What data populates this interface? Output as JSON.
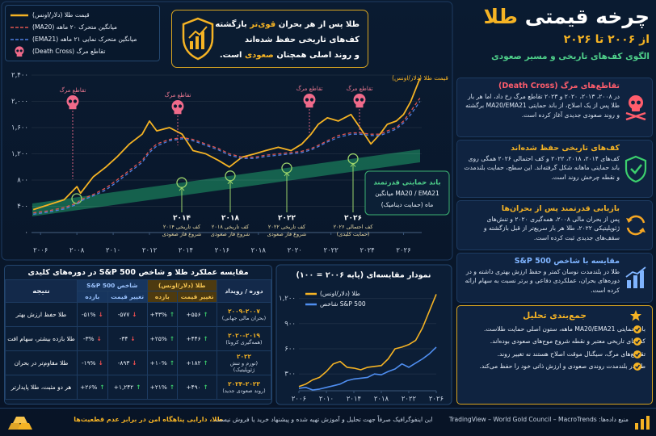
{
  "header": {
    "title": [
      "چرخه قیمتی",
      "طلا"
    ],
    "subtitle": "از ۲۰۰۶ تا ۲۰۲۶",
    "tagline": "الگوی کف‌های تاریخی و مسیر صعودی"
  },
  "callout": [
    [
      "طلا پس از هر بحران",
      "قوی‌تر",
      "بازگشته"
    ],
    [
      "کف‌های تاریخی حفظ شده‌اند"
    ],
    [
      "و روند اصلی همچنان",
      "صعودی",
      "است."
    ]
  ],
  "chart_data": [
    {
      "type": "line",
      "y_label": "قیمت طلا (دلار/اونس)",
      "grid": true,
      "xlim": [
        2005.5,
        2027
      ],
      "ylim": [
        0,
        2450
      ],
      "xticks": [
        {
          "value": 2006,
          "label": "۲۰۰۶"
        },
        {
          "value": 2008,
          "label": "۲۰۰۸"
        },
        {
          "value": 2010,
          "label": "۲۰۱۰"
        },
        {
          "value": 2012,
          "label": "۲۰۱۲"
        },
        {
          "value": 2014,
          "label": "۲۰۱۴"
        },
        {
          "value": 2016,
          "label": "۲۰۱۶"
        },
        {
          "value": 2018,
          "label": "۲۰۱۸"
        },
        {
          "value": 2020,
          "label": "۲۰۲۰"
        },
        {
          "value": 2022,
          "label": "۲۰۲۲"
        },
        {
          "value": 2024,
          "label": "۲۰۲۴"
        },
        {
          "value": 2026,
          "label": "۲۰۲۶"
        }
      ],
      "yticks": [
        {
          "value": 0,
          "label": "۰"
        },
        {
          "value": 400,
          "label": "۴۰۰"
        },
        {
          "value": 800,
          "label": "۸۰۰"
        },
        {
          "value": 1200,
          "label": "۱,۲۰۰"
        },
        {
          "value": 1600,
          "label": "۱,۶۰۰"
        },
        {
          "value": 2000,
          "label": "۲,۰۰۰"
        },
        {
          "value": 2400,
          "label": "۲,۴۰۰"
        }
      ],
      "x": [
        2005.6,
        2006.4,
        2007.3,
        2008.0,
        2008.2,
        2008.9,
        2009.6,
        2010.2,
        2010.9,
        2011.6,
        2012.0,
        2012.4,
        2013.1,
        2013.8,
        2014.4,
        2015.1,
        2015.8,
        2016.4,
        2017.1,
        2017.8,
        2018.4,
        2019.1,
        2019.8,
        2020.4,
        2020.9,
        2021.3,
        2021.8,
        2022.4,
        2023.1,
        2023.6,
        2024.2,
        2024.7,
        2025.1,
        2025.6,
        2026.0,
        2026.4,
        2026.9
      ],
      "series": [
        {
          "name": "قیمت طلا (دلار/اونس)",
          "color": "#f5b324",
          "style": "solid",
          "values": [
            350,
            420,
            500,
            700,
            600,
            850,
            1000,
            1150,
            1350,
            1500,
            1700,
            1550,
            1600,
            1500,
            1250,
            1200,
            1100,
            1000,
            1150,
            1200,
            1250,
            1300,
            1250,
            1350,
            1500,
            1650,
            1750,
            1700,
            1800,
            1600,
            1350,
            1500,
            1650,
            1700,
            1800,
            2000,
            2350
          ]
        },
        {
          "name": "میانگین متحرک ۲۰ ماهه (MA20)",
          "color": "#e0554f",
          "style": "dashed",
          "values": [
            300,
            330,
            380,
            450,
            500,
            580,
            680,
            800,
            950,
            1100,
            1250,
            1350,
            1420,
            1450,
            1420,
            1350,
            1280,
            1200,
            1150,
            1150,
            1180,
            1200,
            1220,
            1240,
            1280,
            1330,
            1400,
            1480,
            1520,
            1520,
            1500,
            1500,
            1550,
            1600,
            1700,
            1850,
            2050
          ]
        },
        {
          "name": "میانگین متحرک نمایی ۲۱ ماهه (EMA21)",
          "color": "#4f7fe0",
          "style": "dashed",
          "values": [
            280,
            310,
            360,
            430,
            480,
            560,
            650,
            770,
            920,
            1070,
            1220,
            1320,
            1400,
            1430,
            1400,
            1330,
            1260,
            1180,
            1130,
            1130,
            1160,
            1180,
            1200,
            1220,
            1260,
            1310,
            1380,
            1450,
            1500,
            1500,
            1480,
            1480,
            1520,
            1580,
            1670,
            1800,
            2000
          ]
        }
      ],
      "death_cross_legend": "تقاطع مرگ (Death Cross)",
      "death_crosses": [
        "تقاطع مرگ",
        "تقاطع مرگ",
        "تقاطع مرگ",
        "تقاطع مرگ"
      ],
      "lows": [
        {
          "year": "۲۰۱۴",
          "lines": [
            "کف تاریخی ۲۰۱۴",
            "شروع فاز صعودی"
          ]
        },
        {
          "year": "۲۰۱۸",
          "lines": [
            "کف تاریخی ۲۰۱۸",
            "شروع فاز صعودی"
          ]
        },
        {
          "year": "۲۰۲۲",
          "lines": [
            "کف تاریخی ۲۰۲۲",
            "شروع فاز صعودی"
          ]
        },
        {
          "year": "۲۰۲۶",
          "lines": [
            "کف احتمالی ۲۰۲۶",
            "(حمایت کلیدی)"
          ]
        }
      ],
      "support_band": [
        "باند حمایتی قدرتمند",
        "میانگین MA20 / EMA21",
        "ماه (حمایت دینامیک)"
      ]
    },
    {
      "type": "line",
      "title": "نمودار مقایسه‌ای (پایه ۲۰۰۶ = ۱۰۰)",
      "grid": true,
      "xlim": [
        2006,
        2026
      ],
      "ylim": [
        100,
        1350
      ],
      "xticks": [
        {
          "value": 2006,
          "label": "۲۰۰۶"
        },
        {
          "value": 2010,
          "label": "۲۰۱۰"
        },
        {
          "value": 2014,
          "label": "۲۰۱۴"
        },
        {
          "value": 2018,
          "label": "۲۰۱۸"
        },
        {
          "value": 2022,
          "label": "۲۰۲۲"
        },
        {
          "value": 2026,
          "label": "۲۰۲۶"
        }
      ],
      "yticks": [
        {
          "value": 300,
          "label": "۳۰۰"
        },
        {
          "value": 600,
          "label": "۶۰۰"
        },
        {
          "value": 900,
          "label": "۹۰۰"
        },
        {
          "value": 1200,
          "label": "۱,۲۰۰"
        }
      ],
      "x": [
        2006,
        2007,
        2008,
        2009,
        2010,
        2011,
        2012,
        2013,
        2014,
        2015,
        2016,
        2017,
        2018,
        2019,
        2020,
        2021,
        2022,
        2023,
        2024,
        2025,
        2026
      ],
      "series": [
        {
          "name": "طلا (دلار/اونس)",
          "color": "#f5b324",
          "style": "solid",
          "values": [
            150,
            180,
            230,
            260,
            330,
            420,
            450,
            380,
            370,
            350,
            380,
            390,
            400,
            480,
            600,
            620,
            650,
            700,
            850,
            1050,
            1250
          ]
        },
        {
          "name": "شاخص S&P 500",
          "color": "#4f8ef0",
          "style": "solid",
          "values": [
            130,
            140,
            110,
            120,
            140,
            160,
            180,
            220,
            240,
            250,
            260,
            300,
            290,
            330,
            360,
            420,
            380,
            430,
            480,
            540,
            620
          ]
        }
      ]
    }
  ],
  "table": {
    "title": "مقایسه عملکرد طلا و شاخص S&P 500 در دوره‌های کلیدی",
    "headers": {
      "period": "دوره / رویداد",
      "gold": "طلا (دلار/اونس)",
      "sp": "شاخص S&P 500",
      "change": "تغییر قیمت",
      "return": "بازده",
      "result": "نتیجه"
    },
    "rows": [
      {
        "period": "۲۰۰۷–۲۰۰۹",
        "event": "(بحران مالی جهانی)",
        "gold_change": "+۵۵۶",
        "gold_return": "+۴۳%",
        "sp_change": "-۵۷۷",
        "sp_return": "-۵۱%",
        "result": "طلا حفظ ارزش بهتر"
      },
      {
        "period": "۲۰۱۹–۲۰۲۰",
        "event": "(همه‌گیری کرونا)",
        "gold_change": "+۴۴۶",
        "gold_return": "+۲۵%",
        "sp_change": "-۳۴",
        "sp_return": "-۳%",
        "result": "طلا بازده بیشتر، سهام افت"
      },
      {
        "period": "۲۰۲۲",
        "event": "(تورم و تنش ژئوپلیتیک)",
        "gold_change": "+۱۸۲",
        "gold_return": "+۱۰%",
        "sp_change": "-۸۹۳",
        "sp_return": "-۱۹%",
        "result": "طلا مقاوم‌تر در بحران"
      },
      {
        "period": "۲۰۲۳–۲۰۲۴",
        "event": "(روند صعودی جدید)",
        "gold_change": "+۴۹۰",
        "gold_return": "+۲۱%",
        "sp_change": "+۱,۲۴۲",
        "sp_return": "+۲۶%",
        "result": "هر دو مثبت، طلا پایدارتر"
      }
    ]
  },
  "sidebar": {
    "sections": [
      {
        "heading": "تقاطع‌های مرگ (Death Cross)",
        "color": "#ff5d6c",
        "body": "در ۲۰۰۸، ۲۰۱۳، ۲۰۲۰ و ۲۰۲۳ تقاطع مرگ رخ داد، اما هر بار طلا پس از یک اصلاح، از باند حمایتی MA20/EMA21 برگشته و روند صعودی جدیدی آغاز کرده است."
      },
      {
        "heading": "کف‌های تاریخی حفظ شده‌اند",
        "color": "#f5b324",
        "body": "کف‌های ۲۰۱۴، ۲۰۱۸، ۲۰۲۲ و کف احتمالی ۲۰۲۶ همگی روی باند حمایتی ماهانه شکل گرفته‌اند. این سطح، حمایت بلندمدت و نقطه چرخش روند است."
      },
      {
        "heading": "بازیابی قدرتمند پس از بحران‌ها",
        "color": "#f5b324",
        "body": "پس از بحران مالی ۲۰۰۸، همه‌گیری ۲۰۲۰ و تنش‌های ژئوپلیتیکی ۲۰۲۲، طلا هر بار سریع‌تر از قبل بازگشته و سقف‌های جدیدی ثبت کرده است."
      },
      {
        "heading": "مقایسه با شاخص S&P 500",
        "color": "#7fb4ff",
        "body": "طلا در بلندمدت نوسان کمتر و حفظ ارزش بهتری داشته و در دوره‌های بحران، عملکردی دفاعی و برتر نسبت به سهام ارائه کرده است."
      }
    ],
    "summary": {
      "heading": "جمع‌بندی تحلیل",
      "items": [
        "باند حمایتی MA20/EMA21 ماهه، ستون اصلی حمایت طلاست.",
        "کف‌های تاریخی معتبر و نقطه شروع موج‌های صعودی بوده‌اند.",
        "تقاطع‌های مرگ، سیگنال موقت اصلاح هستند نه تغییر روند.",
        "طلا در بلندمدت روندی صعودی و ارزش ذاتی خود را حفظ می‌کند."
      ]
    }
  },
  "footer": {
    "tagline": "طلا، دارایی پناهگاه امن در برابر عدم قطعیت‌ها",
    "disclaimer": "این اینفوگرافیک صرفاً جهت تحلیل و آموزش تهیه شده و پیشنهاد خرید یا فروش نیست.",
    "sources": "منبع داده‌ها: TradingView – World Gold Council – MacroTrends"
  }
}
